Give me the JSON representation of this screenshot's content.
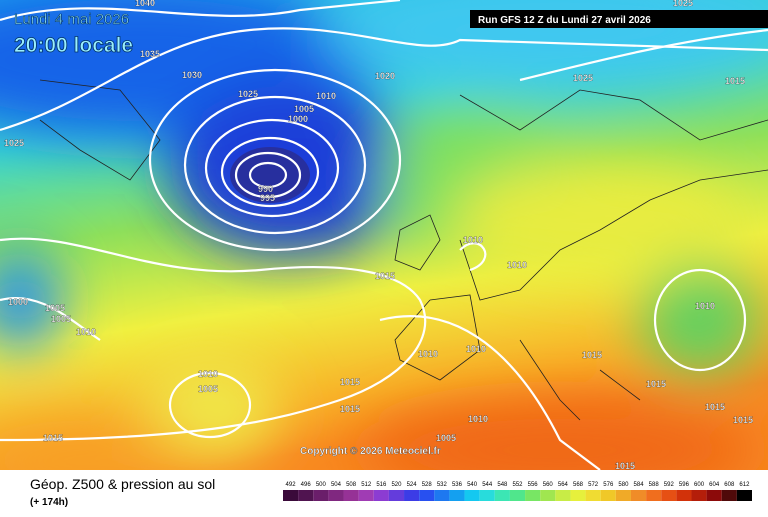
{
  "header": {
    "date": "Lundi 4 mai 2026",
    "time": "20:00 locale",
    "run": "Run GFS 12 Z du Lundi 27 avril 2026"
  },
  "isobar_labels": [
    1040,
    1035,
    1030,
    1025,
    1020,
    1025,
    1015,
    1025,
    1010,
    1005,
    1000,
    990,
    995,
    1010,
    1010,
    1015,
    1000,
    1005,
    1005,
    1010,
    1010,
    1010,
    1010,
    1015,
    1010,
    1005,
    1015,
    1015,
    1015,
    1015,
    1015,
    1010,
    1005,
    1015,
    1015,
    1025
  ],
  "copyright": "Copyright © 2026 Meteociel.fr",
  "footer": {
    "title": "Géop. Z500 & pression au sol",
    "lead": "(+ 174h)"
  },
  "scale": [
    492,
    496,
    500,
    504,
    508,
    512,
    516,
    520,
    524,
    528,
    532,
    536,
    540,
    544,
    548,
    552,
    556,
    560,
    564,
    568,
    572,
    576,
    580,
    584,
    588,
    592,
    596,
    600,
    604,
    608,
    612
  ]
}
